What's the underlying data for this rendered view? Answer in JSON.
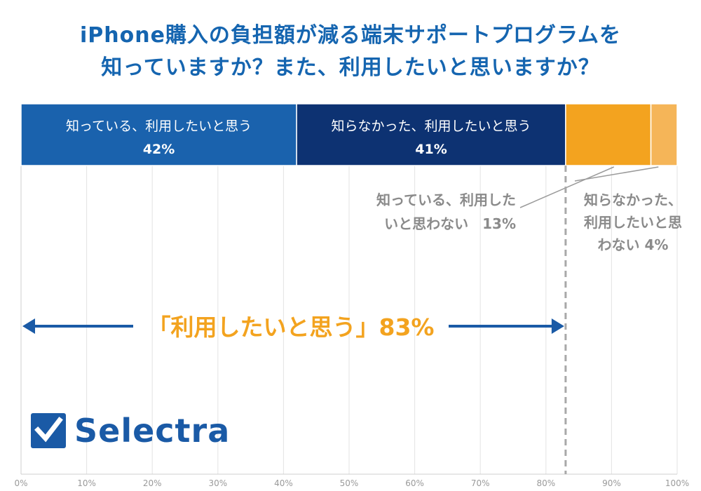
{
  "title": {
    "line1": "iPhone購入の負担額が減る端末サポートプログラムを",
    "line2": "知っていますか？また、利用したいと思いますか？"
  },
  "chart_data": {
    "type": "bar",
    "orientation": "horizontal",
    "stacked": true,
    "title": "iPhone購入の負担額が減る端末サポートプログラムを知っていますか？また、利用したいと思いますか？",
    "xlim": [
      0,
      100
    ],
    "x_ticks": [
      "0%",
      "10%",
      "20%",
      "30%",
      "40%",
      "50%",
      "60%",
      "70%",
      "80%",
      "90%",
      "100%"
    ],
    "grid": true,
    "series": [
      {
        "name": "知っている、利用したいと思う",
        "value": 42,
        "label": "42%",
        "color": "#1a62ad"
      },
      {
        "name": "知らなかった、利用したいと思う",
        "value": 41,
        "label": "41%",
        "color": "#0d3272"
      },
      {
        "name": "知っている、利用したいと思わない",
        "value": 13,
        "label": "13%",
        "color": "#f3a31f"
      },
      {
        "name": "知らなかった、利用したいと思わない",
        "value": 4,
        "label": "4%",
        "color": "#f5b558"
      }
    ],
    "outside_labels": [
      {
        "lines": [
          "知っている、利用した",
          "いと思わない　13%"
        ]
      },
      {
        "lines": [
          "知らなかった、",
          "利用したいと思",
          "わない 4%"
        ]
      }
    ],
    "annotation": {
      "text": "「利用したいと思う」83%",
      "range": [
        0,
        83
      ],
      "color": "#f3a31f",
      "arrow_color": "#1a5aa6"
    }
  },
  "brand": {
    "name": "Selectra",
    "color": "#1a5aa6"
  }
}
